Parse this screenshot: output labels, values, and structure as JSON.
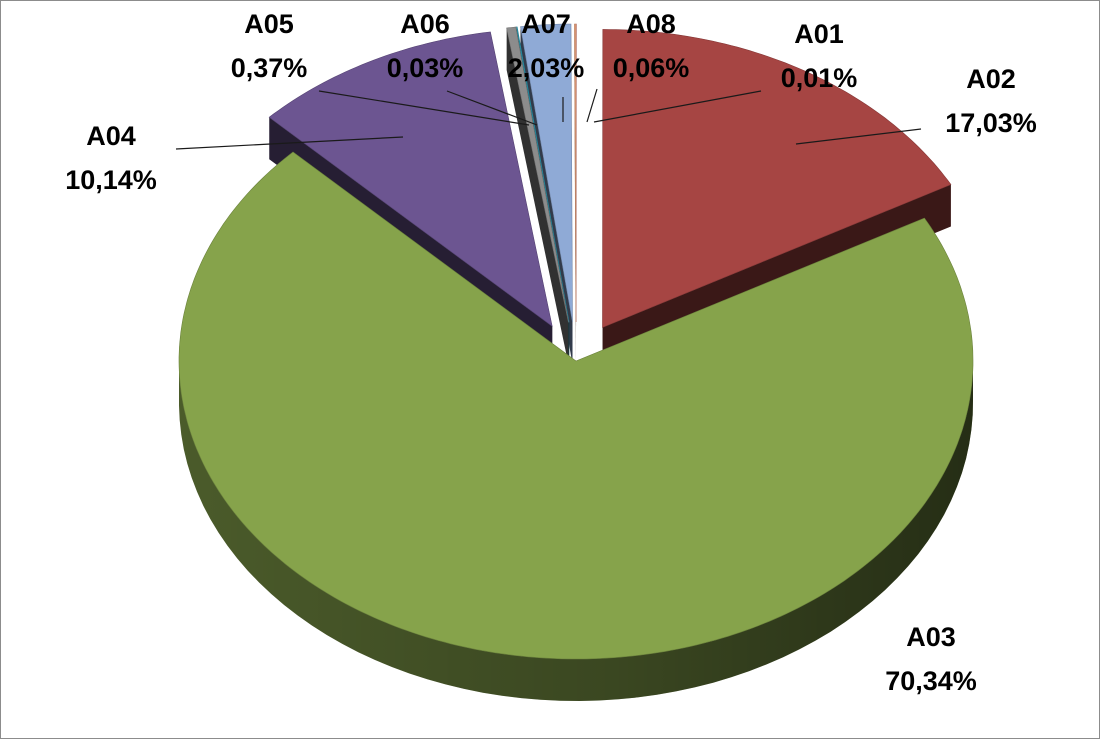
{
  "chart_data": {
    "type": "pie",
    "style": "3d-exploded",
    "categories": [
      "A01",
      "A02",
      "A03",
      "A04",
      "A05",
      "A06",
      "A07",
      "A08"
    ],
    "values": [
      0.01,
      17.03,
      70.34,
      10.14,
      0.37,
      0.03,
      2.03,
      0.06
    ],
    "value_labels": [
      "0,01%",
      "17,03%",
      "70,34%",
      "10,14%",
      "0,37%",
      "0,03%",
      "2,03%",
      "0,06%"
    ],
    "colors": [
      "#c0504d",
      "#a64543",
      "#86a34b",
      "#6c5591",
      "#8c8c8c",
      "#2da5be",
      "#8faad6",
      "#e8a07a"
    ],
    "title": "",
    "legend": "none",
    "data_labels": "outside with leader lines"
  }
}
